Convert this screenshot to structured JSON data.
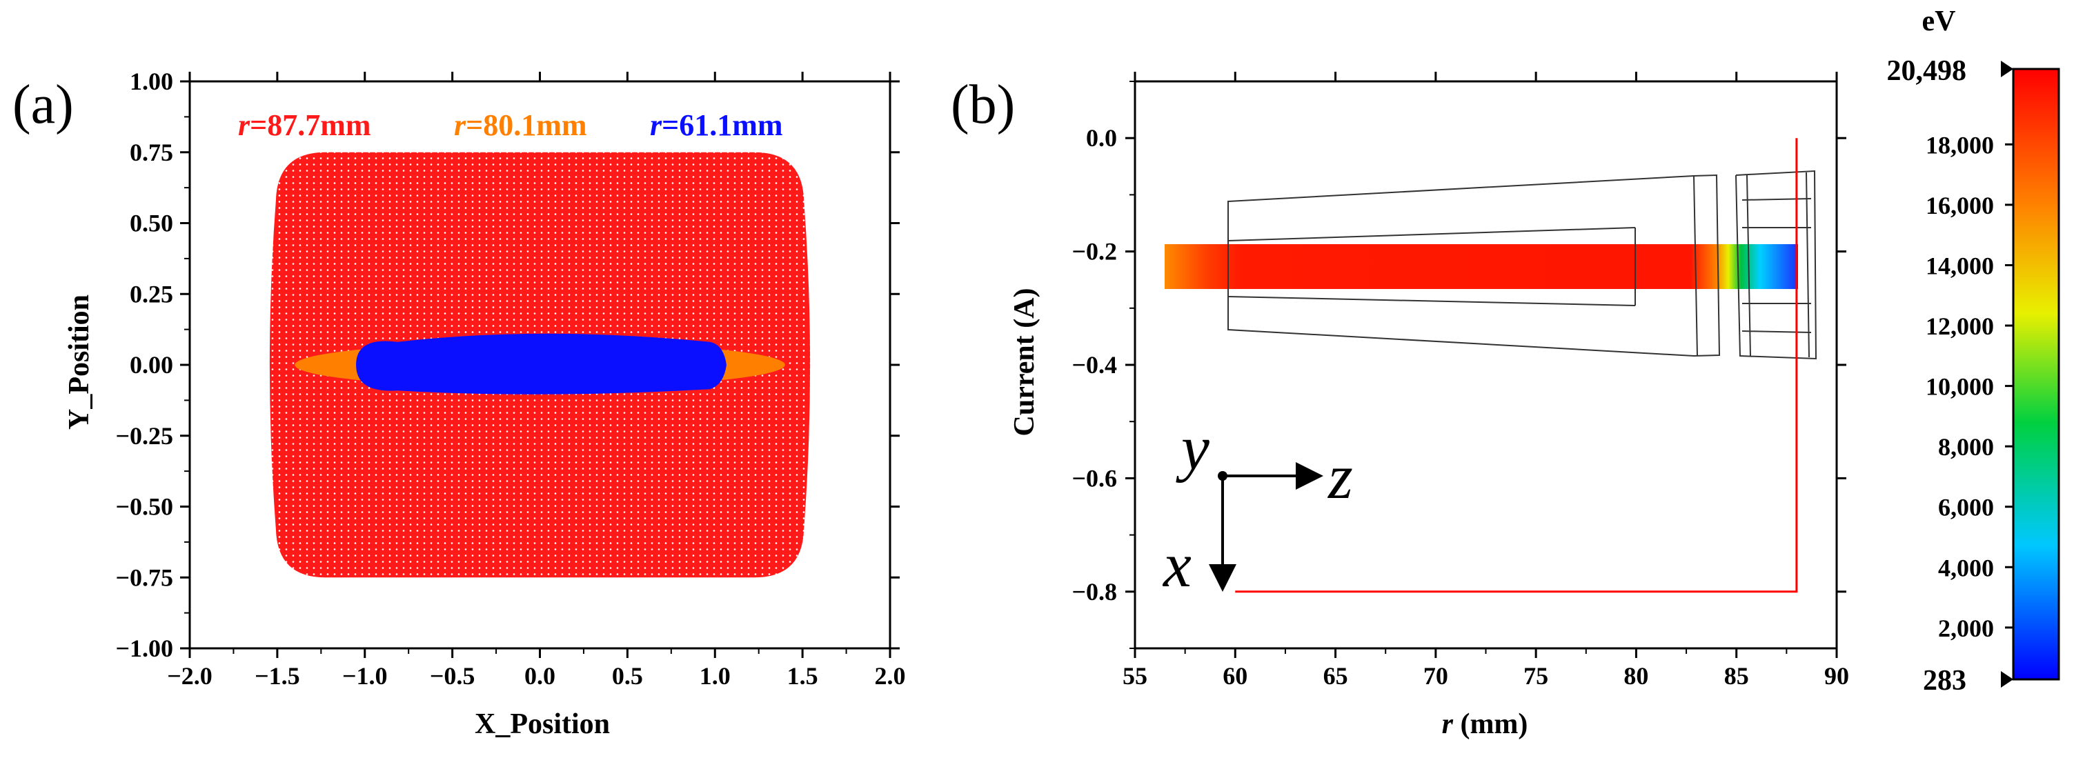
{
  "chart_data": [
    {
      "panel": "(a)",
      "type": "scatter",
      "xlabel": "X_Position",
      "ylabel": "Y_Position",
      "xlim": [
        -2.0,
        2.0
      ],
      "ylim": [
        -1.0,
        1.0
      ],
      "xticks": [
        "-2.0",
        "-1.5",
        "-1.0",
        "-0.5",
        "0.0",
        "0.5",
        "1.0",
        "1.5",
        "2.0"
      ],
      "yticks": [
        "1.00",
        "0.75",
        "0.50",
        "0.25",
        "0.00",
        "-0.25",
        "-0.50",
        "-0.75",
        "-1.00"
      ],
      "series": [
        {
          "name_prefix": "r",
          "name_value": "=87.7mm",
          "color": "#ff1a1a",
          "shape": "rounded-rectangle",
          "x_extent": [
            -1.5,
            1.5
          ],
          "y_extent": [
            -0.75,
            0.75
          ]
        },
        {
          "name_prefix": "r",
          "name_value": "=80.1mm",
          "color": "#ff8000",
          "shape": "ellipse",
          "x_extent": [
            -1.4,
            1.4
          ],
          "y_extent": [
            -0.08,
            0.08
          ]
        },
        {
          "name_prefix": "r",
          "name_value": "=61.1mm",
          "color": "#0a10ff",
          "shape": "ellipse",
          "x_extent": [
            -1.05,
            1.05
          ],
          "y_extent": [
            -0.11,
            0.11
          ]
        }
      ]
    },
    {
      "panel": "(b)",
      "type": "line",
      "xlabel_italic": "r",
      "xlabel_rest": " (mm)",
      "ylabel": "Current (A)",
      "xlim": [
        55,
        90
      ],
      "ylim": [
        -0.9,
        0.1
      ],
      "xticks": [
        "55",
        "60",
        "65",
        "70",
        "75",
        "80",
        "85",
        "90"
      ],
      "yticks": [
        "0.0",
        "-0.2",
        "-0.4",
        "-0.6",
        "-0.8"
      ],
      "current_line": {
        "color": "#ff0000",
        "x": [
          60,
          88,
          88
        ],
        "y": [
          -0.8,
          -0.8,
          0.0
        ]
      },
      "beam": {
        "x_range": [
          56.3,
          88.0
        ],
        "y_center": -0.225,
        "energy_note": "beam energy colored from high (red) to low (blue) near r = 84-88 mm"
      },
      "axes_labels": {
        "y": "y",
        "z": "z",
        "x": "x"
      }
    }
  ],
  "colorbar": {
    "unit": "eV",
    "min_label": "283",
    "max_label": "20,498",
    "min": 283,
    "max": 20498,
    "ticks": [
      "18,000",
      "16,000",
      "14,000",
      "12,000",
      "10,000",
      "8,000",
      "6,000",
      "4,000",
      "2,000"
    ],
    "tick_values": [
      18000,
      16000,
      14000,
      12000,
      10000,
      8000,
      6000,
      4000,
      2000
    ],
    "colors": [
      "#0000ff",
      "#00c8ff",
      "#00d040",
      "#e8f000",
      "#ff8000",
      "#ff0000"
    ]
  }
}
